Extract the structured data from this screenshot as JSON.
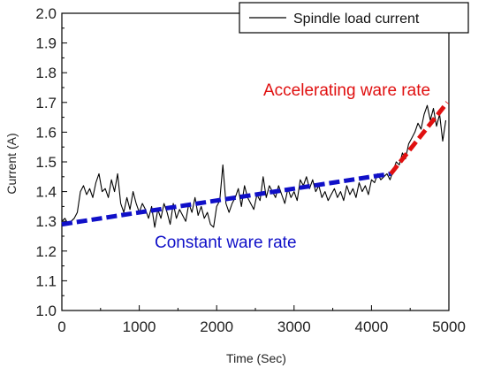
{
  "chart_data": {
    "type": "line",
    "title": "",
    "xlabel": "Time (Sec)",
    "ylabel": "Current (A)",
    "xlim": [
      0,
      5000
    ],
    "ylim": [
      1.0,
      2.0
    ],
    "x_ticks": [
      0,
      1000,
      2000,
      3000,
      4000,
      5000
    ],
    "y_ticks": [
      1.0,
      1.1,
      1.2,
      1.3,
      1.4,
      1.5,
      1.6,
      1.7,
      1.8,
      1.9,
      2.0
    ],
    "x_tick_labels": [
      "0",
      "1000",
      "2000",
      "3000",
      "4000",
      "5000"
    ],
    "y_tick_labels": [
      "1.0",
      "1.1",
      "1.2",
      "1.3",
      "1.4",
      "1.5",
      "1.6",
      "1.7",
      "1.8",
      "1.9",
      "2.0"
    ],
    "grid": false,
    "legend": {
      "position": "top-right",
      "entries": [
        "Spindle load current"
      ]
    },
    "series": [
      {
        "name": "Spindle load current",
        "color": "#000000",
        "style": "solid",
        "x": [
          0,
          40,
          80,
          120,
          160,
          200,
          240,
          280,
          320,
          360,
          400,
          440,
          480,
          520,
          560,
          600,
          640,
          680,
          720,
          760,
          800,
          840,
          880,
          920,
          960,
          1000,
          1040,
          1080,
          1120,
          1160,
          1200,
          1240,
          1280,
          1320,
          1360,
          1400,
          1440,
          1480,
          1520,
          1560,
          1600,
          1640,
          1680,
          1720,
          1760,
          1800,
          1840,
          1880,
          1920,
          1960,
          2000,
          2040,
          2080,
          2120,
          2160,
          2200,
          2240,
          2280,
          2320,
          2360,
          2400,
          2440,
          2480,
          2520,
          2560,
          2600,
          2640,
          2680,
          2720,
          2760,
          2800,
          2840,
          2880,
          2920,
          2960,
          3000,
          3040,
          3080,
          3120,
          3160,
          3200,
          3240,
          3280,
          3320,
          3360,
          3400,
          3440,
          3480,
          3520,
          3560,
          3600,
          3640,
          3680,
          3720,
          3760,
          3800,
          3840,
          3880,
          3920,
          3960,
          4000,
          4040,
          4080,
          4120,
          4160,
          4200,
          4240,
          4280,
          4320,
          4360,
          4400,
          4440,
          4480,
          4520,
          4560,
          4600,
          4640,
          4680,
          4720,
          4760,
          4800,
          4840,
          4880,
          4920,
          4960
        ],
        "y": [
          1.3,
          1.31,
          1.29,
          1.3,
          1.31,
          1.33,
          1.4,
          1.42,
          1.39,
          1.41,
          1.38,
          1.43,
          1.46,
          1.4,
          1.41,
          1.38,
          1.44,
          1.4,
          1.46,
          1.36,
          1.33,
          1.38,
          1.34,
          1.4,
          1.36,
          1.33,
          1.36,
          1.34,
          1.31,
          1.35,
          1.28,
          1.34,
          1.31,
          1.36,
          1.33,
          1.29,
          1.36,
          1.31,
          1.34,
          1.32,
          1.3,
          1.36,
          1.33,
          1.38,
          1.32,
          1.35,
          1.31,
          1.33,
          1.29,
          1.28,
          1.35,
          1.37,
          1.49,
          1.36,
          1.33,
          1.36,
          1.38,
          1.41,
          1.35,
          1.42,
          1.38,
          1.36,
          1.34,
          1.39,
          1.37,
          1.45,
          1.38,
          1.42,
          1.4,
          1.38,
          1.42,
          1.39,
          1.36,
          1.41,
          1.38,
          1.4,
          1.37,
          1.44,
          1.42,
          1.45,
          1.41,
          1.44,
          1.4,
          1.42,
          1.38,
          1.4,
          1.37,
          1.39,
          1.41,
          1.38,
          1.4,
          1.37,
          1.42,
          1.39,
          1.41,
          1.38,
          1.43,
          1.4,
          1.42,
          1.39,
          1.44,
          1.43,
          1.46,
          1.44,
          1.45,
          1.46,
          1.44,
          1.47,
          1.5,
          1.49,
          1.53,
          1.51,
          1.56,
          1.58,
          1.6,
          1.63,
          1.61,
          1.66,
          1.69,
          1.64,
          1.68,
          1.62,
          1.66,
          1.57,
          1.64
        ]
      },
      {
        "color": "#1010c8",
        "style": "dashed",
        "x": [
          0,
          4250
        ],
        "y": [
          1.29,
          1.46
        ]
      },
      {
        "color": "#e01010",
        "style": "dashed",
        "x": [
          4250,
          4980
        ],
        "y": [
          1.46,
          1.7
        ]
      }
    ],
    "annotations": [
      {
        "text": "Constant ware rate",
        "color": "#1010c8",
        "x": 2000,
        "y": 1.215
      },
      {
        "text": "Accelerating ware rate",
        "color": "#e01010",
        "x": 4350,
        "y": 1.745
      }
    ]
  }
}
